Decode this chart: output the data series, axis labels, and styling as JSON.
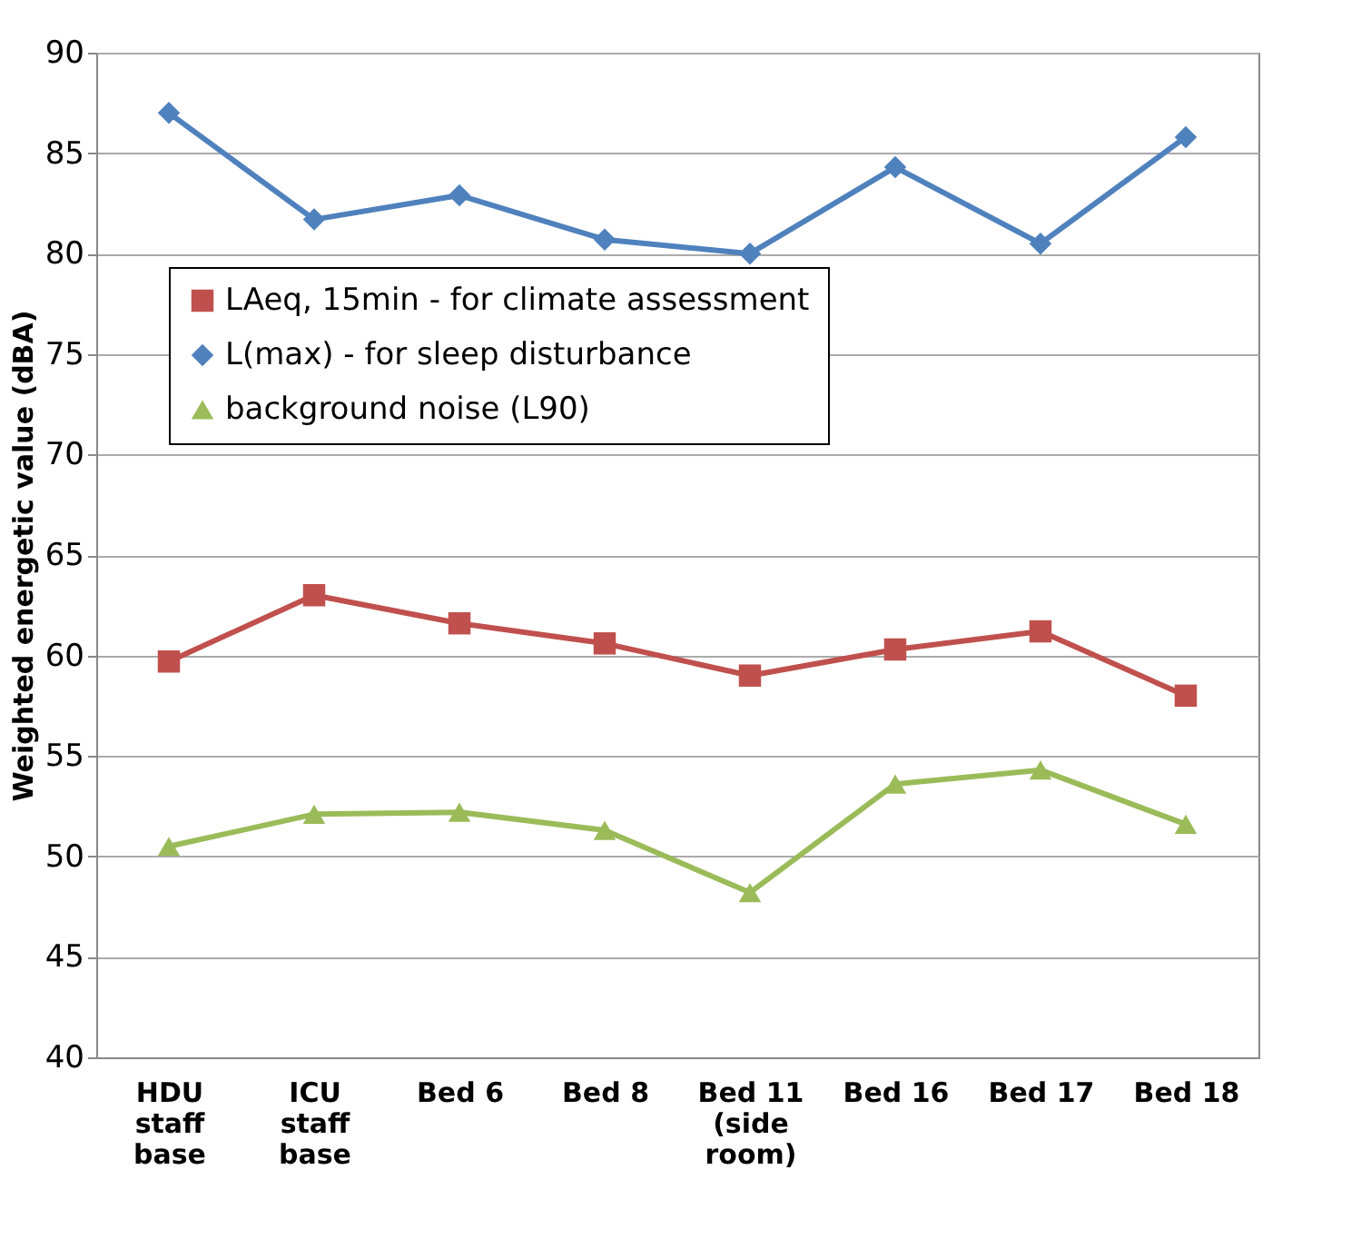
{
  "chart_data": {
    "type": "line",
    "categories": [
      "HDU\nstaff\nbase",
      "ICU\nstaff\nbase",
      "Bed 6",
      "Bed 8",
      "Bed 11\n(side\nroom)",
      "Bed 16",
      "Bed 17",
      "Bed 18"
    ],
    "ylabel": "Weighted energetic value (dBA)",
    "series": [
      {
        "name": "LAeq, 15min - for climate assessment",
        "color": "#c0504d",
        "marker": "square",
        "values": [
          59.7,
          63.0,
          61.6,
          60.6,
          59.0,
          60.3,
          61.2,
          58.0
        ]
      },
      {
        "name": "L(max) - for sleep disturbance",
        "color": "#4f81bd",
        "marker": "diamond",
        "values": [
          87.0,
          81.7,
          82.9,
          80.7,
          80.0,
          84.3,
          80.5,
          85.8
        ]
      },
      {
        "name": "background noise (L90)",
        "color": "#9bbb59",
        "marker": "triangle",
        "values": [
          50.5,
          52.1,
          52.2,
          51.3,
          48.2,
          53.6,
          54.3,
          51.6
        ]
      }
    ],
    "ylim": [
      40,
      90
    ],
    "yticks": [
      40,
      45,
      50,
      55,
      60,
      65,
      70,
      75,
      80,
      85,
      90
    ],
    "grid": "y",
    "legend": "top",
    "line_style": "solid"
  }
}
